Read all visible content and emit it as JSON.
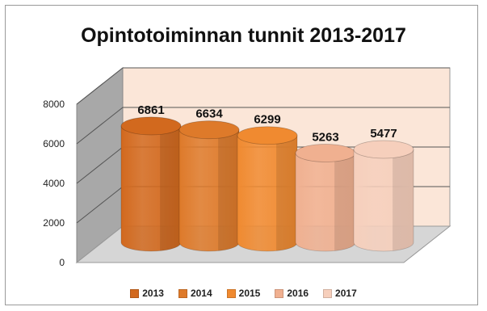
{
  "chart_data": {
    "type": "bar",
    "title": "Opintotoiminnan tunnit 2013-2017",
    "categories": [
      "2013",
      "2014",
      "2015",
      "2016",
      "2017"
    ],
    "values": [
      6861,
      6634,
      6299,
      5263,
      5477
    ],
    "ylim": [
      0,
      8000
    ],
    "yticks": [
      "0",
      "2000",
      "4000",
      "6000",
      "8000"
    ],
    "legend_position": "bottom",
    "grid": true,
    "bar_shape": "cylinder",
    "colors": [
      "#d2691e",
      "#de7a2a",
      "#f08a30",
      "#f0b090",
      "#f6cfbc"
    ]
  }
}
